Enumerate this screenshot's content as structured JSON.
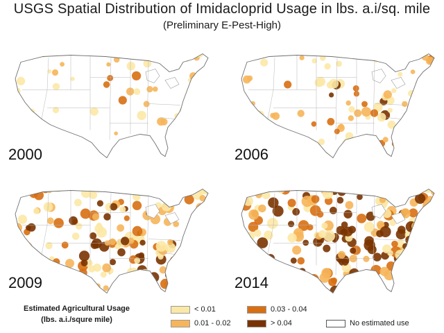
{
  "title": "USGS Spatial Distribution of Imidacloprid Usage in lbs. a.i/sq. mile",
  "subtitle": "(Preliminary E-Pest-High)",
  "panels": [
    {
      "year": "2000",
      "intensity": 0.22
    },
    {
      "year": "2006",
      "intensity": 0.4
    },
    {
      "year": "2009",
      "intensity": 0.62
    },
    {
      "year": "2014",
      "intensity": 0.75
    }
  ],
  "legend": {
    "title_line1": "Estimated Agricultural Usage",
    "title_line2": "(lbs. a.i./squre mile)",
    "items": [
      {
        "label": "< 0.01",
        "color": "#fce8a6"
      },
      {
        "label": "0.01 - 0.02",
        "color": "#f6b55a"
      },
      {
        "label": "0.03 - 0.04",
        "color": "#d86f12"
      },
      {
        "label": "> 0.04",
        "color": "#7a3300"
      },
      {
        "label": "No estimated use",
        "color": "#ffffff"
      }
    ]
  }
}
